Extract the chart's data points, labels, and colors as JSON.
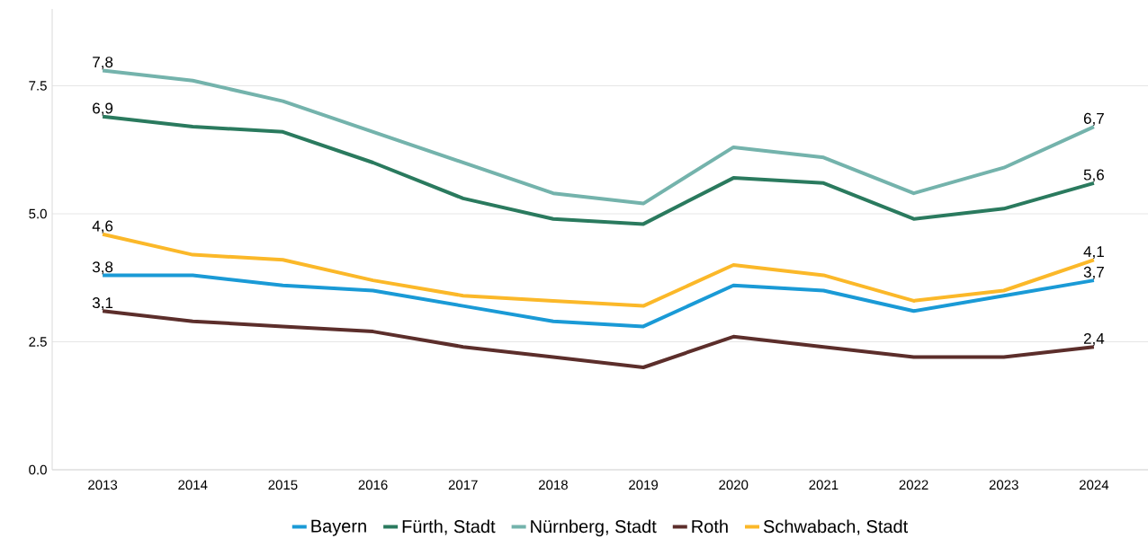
{
  "chart_data": {
    "type": "line",
    "categories": [
      "2013",
      "2014",
      "2015",
      "2016",
      "2017",
      "2018",
      "2019",
      "2020",
      "2021",
      "2022",
      "2023",
      "2024"
    ],
    "series": [
      {
        "name": "Bayern",
        "color": "#1a9ad6",
        "values": [
          3.8,
          3.8,
          3.6,
          3.5,
          3.2,
          2.9,
          2.8,
          3.6,
          3.5,
          3.1,
          3.4,
          3.7
        ],
        "value_labels": [
          "3,8",
          null,
          null,
          null,
          null,
          null,
          null,
          null,
          null,
          null,
          null,
          "3,7"
        ]
      },
      {
        "name": "Fürth, Stadt",
        "color": "#2a7a5e",
        "values": [
          6.9,
          6.7,
          6.6,
          6.0,
          5.3,
          4.9,
          4.8,
          5.7,
          5.6,
          4.9,
          5.1,
          5.6
        ],
        "value_labels": [
          "6,9",
          null,
          null,
          null,
          null,
          null,
          null,
          null,
          null,
          null,
          null,
          "5,6"
        ]
      },
      {
        "name": "Nürnberg, Stadt",
        "color": "#74b3ac",
        "values": [
          7.8,
          7.6,
          7.2,
          6.6,
          6.0,
          5.4,
          5.2,
          6.3,
          6.1,
          5.4,
          5.9,
          6.7
        ],
        "value_labels": [
          "7,8",
          null,
          null,
          null,
          null,
          null,
          null,
          null,
          null,
          null,
          null,
          "6,7"
        ]
      },
      {
        "name": "Roth",
        "color": "#5c2e2b",
        "values": [
          3.1,
          2.9,
          2.8,
          2.7,
          2.4,
          2.2,
          2.0,
          2.6,
          2.4,
          2.2,
          2.2,
          2.4
        ],
        "value_labels": [
          "3,1",
          null,
          null,
          null,
          null,
          null,
          null,
          null,
          null,
          null,
          null,
          "2,4"
        ]
      },
      {
        "name": "Schwabach, Stadt",
        "color": "#fbb829",
        "values": [
          4.6,
          4.2,
          4.1,
          3.7,
          3.4,
          3.3,
          3.2,
          4.0,
          3.8,
          3.3,
          3.5,
          4.1
        ],
        "value_labels": [
          "4,6",
          null,
          null,
          null,
          null,
          null,
          null,
          null,
          null,
          null,
          null,
          "4,1"
        ]
      }
    ],
    "ylim": [
      0,
      9
    ],
    "yticks": [
      {
        "value": 0,
        "label": "0.0"
      },
      {
        "value": 2.5,
        "label": "2.5"
      },
      {
        "value": 5,
        "label": "5.0"
      },
      {
        "value": 7.5,
        "label": "7.5"
      }
    ],
    "grid": "y",
    "legend": "bottom",
    "marker": "none",
    "line_style": "solid"
  }
}
